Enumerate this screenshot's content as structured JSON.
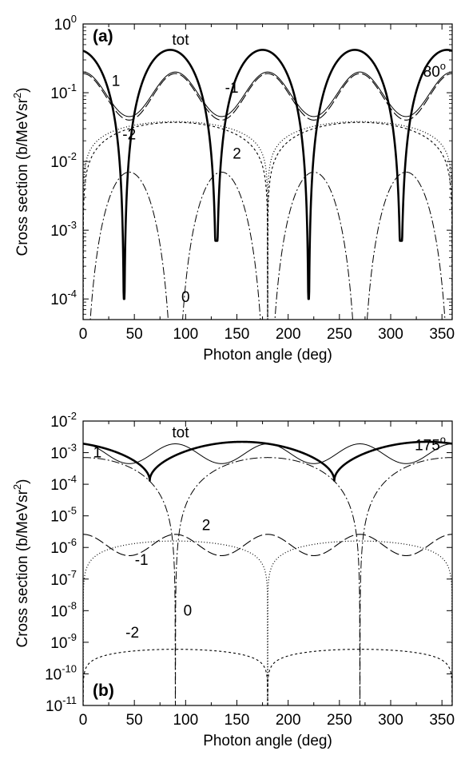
{
  "chart_data": [
    {
      "type": "line",
      "panel_label": "(a)",
      "annotation_angle": "80",
      "annotation_angle_unit": "o",
      "xlabel": "Photon angle  (deg)",
      "ylabel": "Cross section  (b/MeVsr",
      "ylabel_sup": "2",
      "ylabel_tail": ")",
      "xlim": [
        0,
        360
      ],
      "ylim_log10": [
        -4.3,
        0
      ],
      "y_scale": "log",
      "x_ticks": [
        "0",
        "50",
        "100",
        "150",
        "200",
        "250",
        "300",
        "350"
      ],
      "y_ticks": [
        {
          "base": "10",
          "exp": "0",
          "exp_value": 0
        },
        {
          "base": "10",
          "exp": "-1",
          "exp_value": -1
        },
        {
          "base": "10",
          "exp": "-2",
          "exp_value": -2
        },
        {
          "base": "10",
          "exp": "-3",
          "exp_value": -3
        },
        {
          "base": "10",
          "exp": "-4",
          "exp_value": -4
        }
      ],
      "series": [
        {
          "name": "tot",
          "style": "thick",
          "params": {
            "A": 0.42,
            "floor": 0.0001,
            "min_list": [
              40,
              220
            ],
            "floor2": 0.0007,
            "min_list2": [
              130,
              310
            ]
          }
        },
        {
          "name": "1",
          "style": "thin",
          "params": {
            "peak": 0.2,
            "trough": 0.045
          }
        },
        {
          "name": "-1",
          "style": "dash-long",
          "params": {
            "peak": 0.19,
            "trough": 0.04
          }
        },
        {
          "name": "2",
          "style": "dashed-short",
          "params": {
            "A": 0.037
          }
        },
        {
          "name": "-2",
          "style": "dotted",
          "params": {
            "A": 0.038
          }
        },
        {
          "name": "0",
          "style": "dashdot",
          "params": {
            "A": 0.007
          }
        }
      ],
      "labels": [
        {
          "text": "tot",
          "x": 95,
          "y": 0.5
        },
        {
          "text": "1",
          "x": 32,
          "y": 0.125
        },
        {
          "text": "-1",
          "x": 145,
          "y": 0.1
        },
        {
          "text": "-2",
          "x": 45,
          "y": 0.021
        },
        {
          "text": "2",
          "x": 150,
          "y": 0.011
        },
        {
          "text": "0",
          "x": 100,
          "y": 9e-05
        }
      ]
    },
    {
      "type": "line",
      "panel_label": "(b)",
      "annotation_angle": "175",
      "annotation_angle_unit": "o",
      "xlabel": "Photon angle  (deg)",
      "ylabel": "Cross section  (b/MeVsr",
      "ylabel_sup": "2",
      "ylabel_tail": ")",
      "xlim": [
        0,
        360
      ],
      "ylim_log10": [
        -11,
        -2
      ],
      "y_scale": "log",
      "x_ticks": [
        "0",
        "50",
        "100",
        "150",
        "200",
        "250",
        "300",
        "350"
      ],
      "y_ticks": [
        {
          "base": "10",
          "exp": "-2",
          "exp_value": -2
        },
        {
          "base": "10",
          "exp": "-3",
          "exp_value": -3
        },
        {
          "base": "10",
          "exp": "-4",
          "exp_value": -4
        },
        {
          "base": "10",
          "exp": "-5",
          "exp_value": -5
        },
        {
          "base": "10",
          "exp": "-6",
          "exp_value": -6
        },
        {
          "base": "10",
          "exp": "-7",
          "exp_value": -7
        },
        {
          "base": "10",
          "exp": "-8",
          "exp_value": -8
        },
        {
          "base": "10",
          "exp": "-9",
          "exp_value": -9
        },
        {
          "base": "10",
          "exp": "-10",
          "exp_value": -10
        },
        {
          "base": "10",
          "exp": "-11",
          "exp_value": -11
        }
      ],
      "series": [
        {
          "name": "tot",
          "style": "thick"
        },
        {
          "name": "1",
          "style": "thin"
        },
        {
          "name": "0",
          "style": "dashdot"
        },
        {
          "name": "2",
          "style": "dotted"
        },
        {
          "name": "-1",
          "style": "dash-long"
        },
        {
          "name": "-2",
          "style": "dashed-short"
        }
      ],
      "labels": [
        {
          "text": "tot",
          "x": 95,
          "y": 0.003
        },
        {
          "text": "1",
          "x": 14,
          "y": 0.0007
        },
        {
          "text": "2",
          "x": 120,
          "y": 3.5e-06
        },
        {
          "text": "-1",
          "x": 57,
          "y": 2.8e-07
        },
        {
          "text": "0",
          "x": 102,
          "y": 7e-09
        },
        {
          "text": "-2",
          "x": 48,
          "y": 1.4e-09
        }
      ]
    }
  ]
}
